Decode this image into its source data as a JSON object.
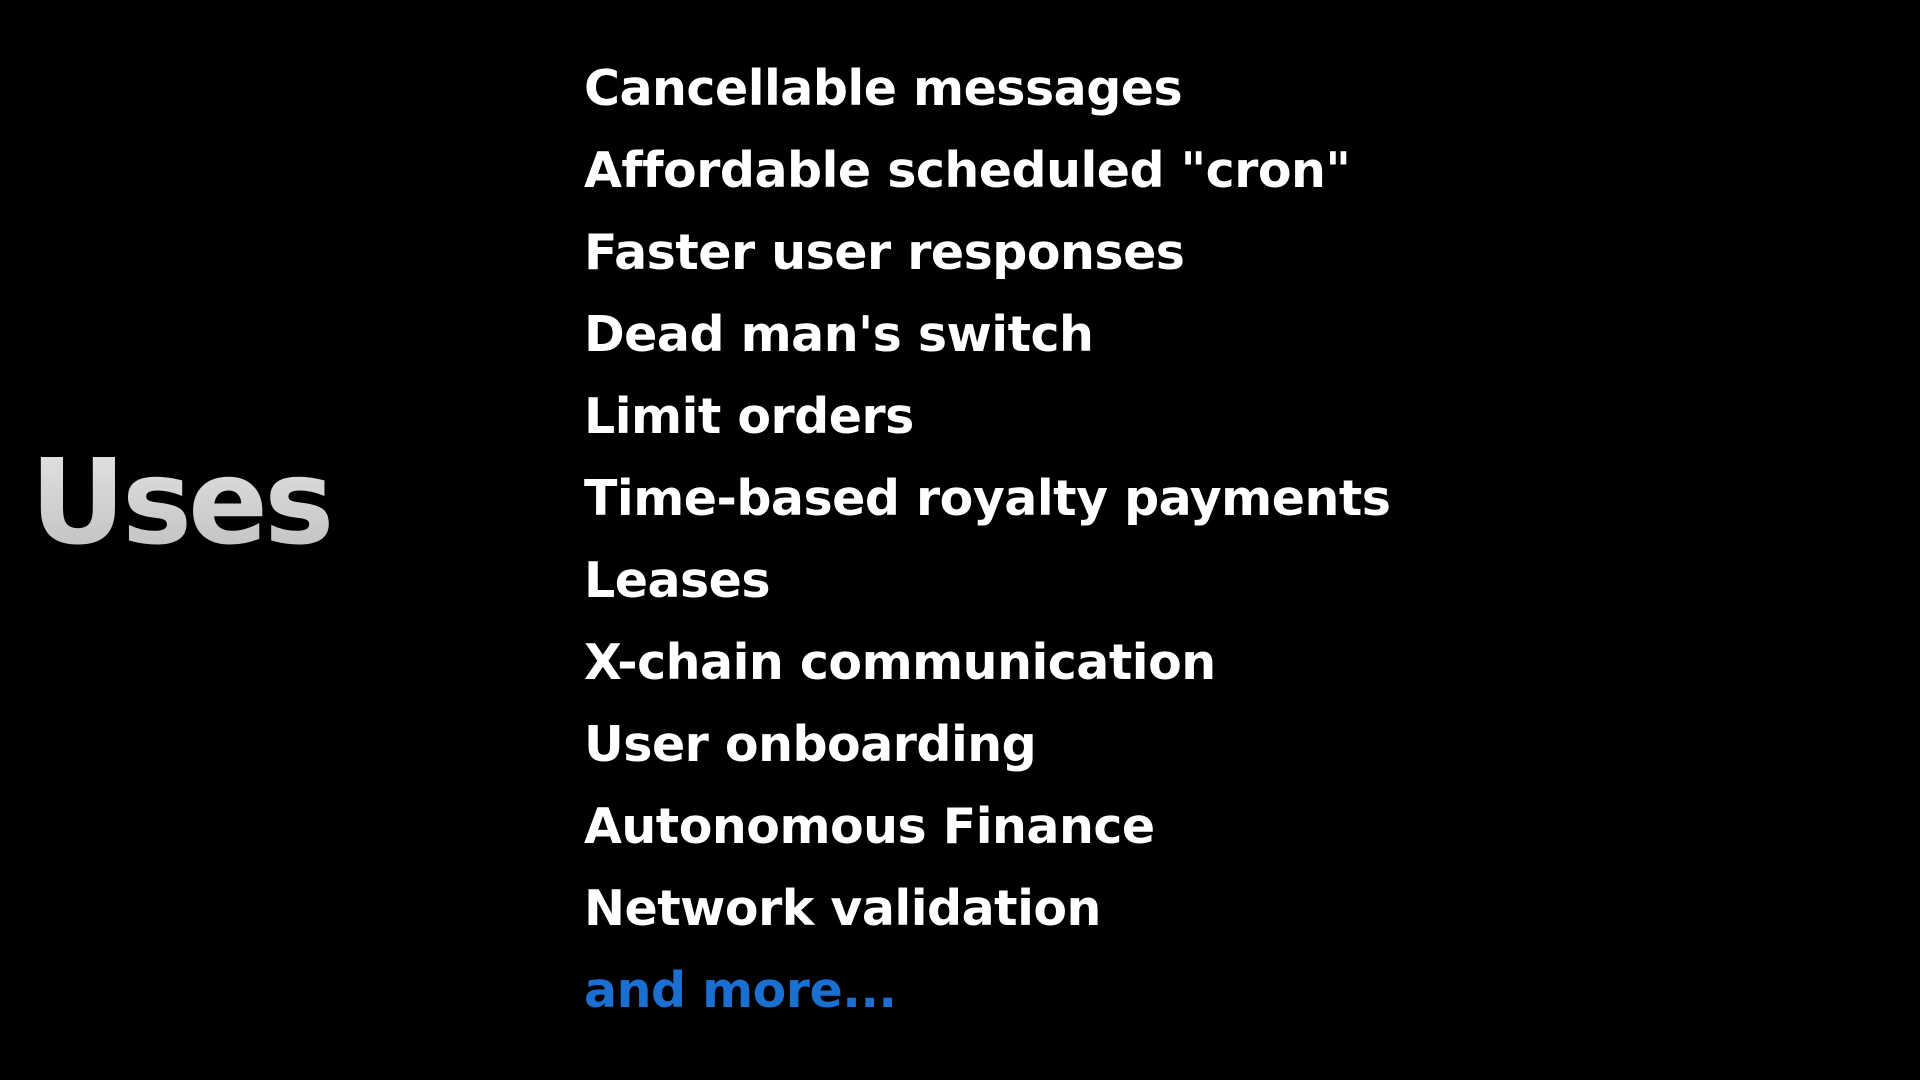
{
  "slide": {
    "title": "Uses",
    "items": [
      "Cancellable messages",
      "Affordable scheduled \"cron\"",
      "Faster user responses",
      "Dead man's switch",
      "Limit orders",
      "Time-based royalty payments",
      "Leases",
      "X-chain communication",
      "User onboarding",
      "Autonomous Finance",
      "Network validation"
    ],
    "more_label": "and more..."
  },
  "colors": {
    "background": "#000000",
    "title": "#cfcfcf",
    "item_text": "#ffffff",
    "more_link": "#1a6fd1"
  }
}
